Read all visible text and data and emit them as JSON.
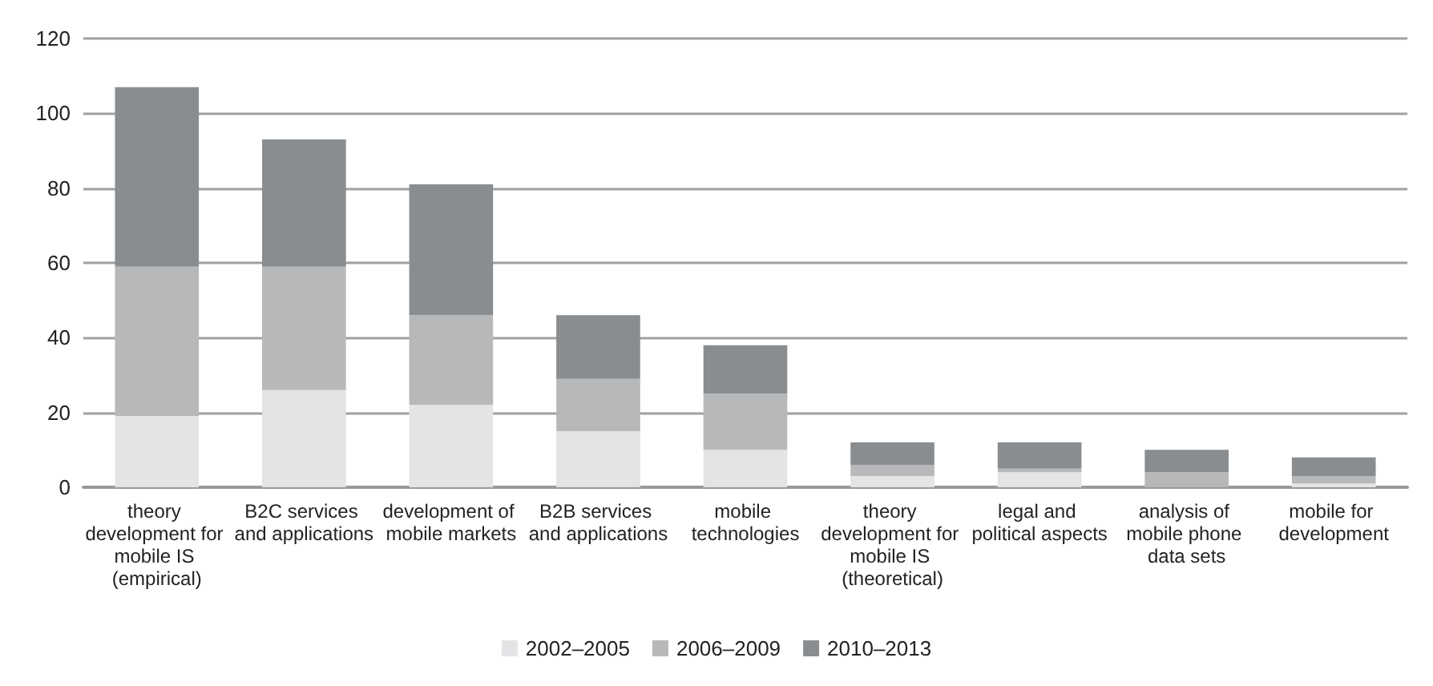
{
  "chart_data": {
    "type": "bar",
    "stacked": true,
    "categories": [
      "theory development for mobile IS (empirical)",
      "B2C services and applications",
      "development of mobile markets",
      "B2B services and applications",
      "mobile technologies",
      "theory development for mobile IS (theoretical)",
      "legal and political aspects",
      "analysis of mobile phone data sets",
      "mobile for development"
    ],
    "series": [
      {
        "name": "2002–2005",
        "color": "#e3e4e6",
        "values": [
          19,
          26,
          22,
          15,
          10,
          3,
          4,
          0,
          1
        ]
      },
      {
        "name": "2006–2009",
        "color": "#b7b8ba",
        "values": [
          40,
          33,
          24,
          14,
          15,
          3,
          1,
          4,
          2
        ]
      },
      {
        "name": "2010–2013",
        "color": "#8a8d90",
        "values": [
          48,
          34,
          35,
          17,
          13,
          6,
          7,
          6,
          5
        ]
      }
    ],
    "ylim": [
      0,
      120
    ],
    "yticks": [
      0,
      20,
      40,
      60,
      80,
      100,
      120
    ],
    "grid": "y",
    "legend": "bottom"
  }
}
